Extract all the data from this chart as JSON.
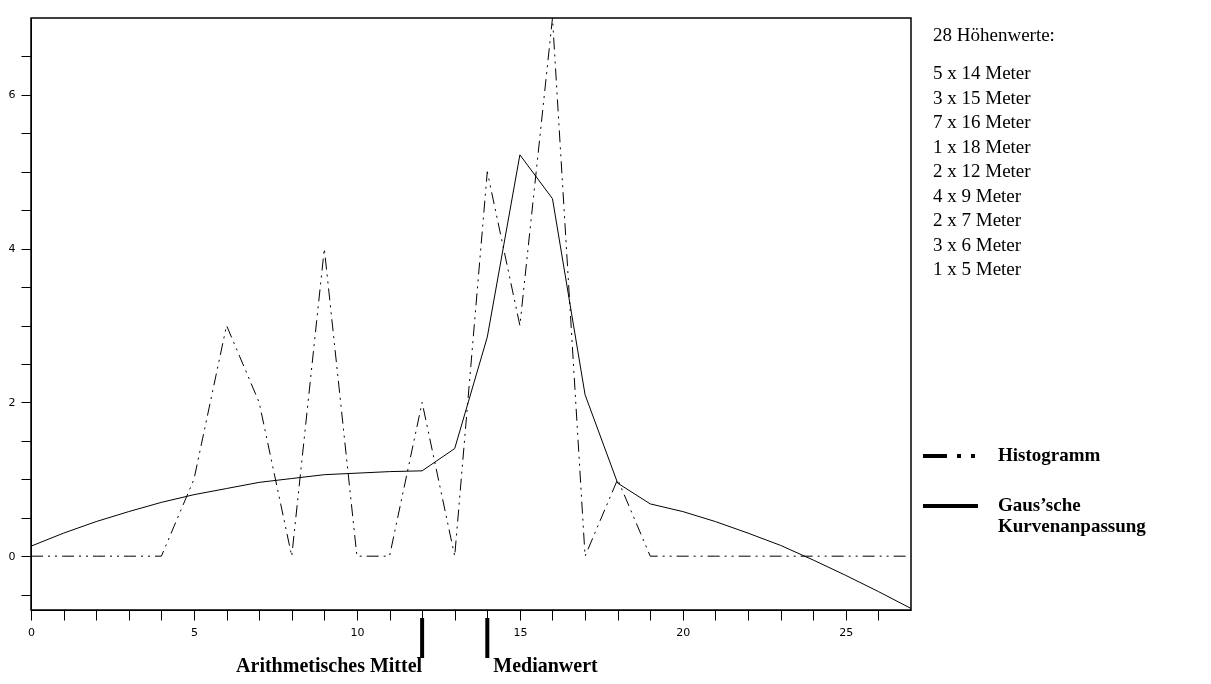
{
  "chart_data": {
    "type": "line",
    "x": [
      0,
      1,
      2,
      3,
      4,
      5,
      6,
      7,
      8,
      9,
      10,
      11,
      12,
      13,
      14,
      15,
      16,
      17,
      18,
      19,
      20,
      21,
      22,
      23,
      24,
      25,
      26,
      27
    ],
    "series": [
      {
        "name": "Histogramm",
        "color": "#000000",
        "line_style": "dashed",
        "values": [
          0,
          0,
          0,
          0,
          0,
          1,
          3,
          2,
          0,
          4,
          0,
          0,
          2,
          0,
          5,
          3,
          7,
          0,
          1,
          0,
          0,
          0,
          0,
          0,
          0,
          0,
          0,
          0
        ]
      },
      {
        "name": "Gaus’sche Kurvenanpassung",
        "color": "#000000",
        "line_style": "solid",
        "values": [
          0.13,
          0.3,
          0.45,
          0.58,
          0.7,
          0.8,
          0.88,
          0.96,
          1.01,
          1.06,
          1.08,
          1.1,
          1.11,
          1.4,
          2.85,
          5.22,
          4.65,
          2.1,
          0.95,
          0.68,
          0.58,
          0.45,
          0.3,
          0.14,
          -0.05,
          -0.25,
          -0.46,
          -0.68
        ]
      }
    ],
    "xlim": [
      0,
      27
    ],
    "ylim": [
      -0.7,
      7
    ],
    "xticks": [
      0,
      {
        "value": 1,
        "label": null
      },
      {
        "value": 2,
        "label": null
      },
      {
        "value": 3,
        "label": null
      },
      {
        "value": 4,
        "label": null
      },
      5,
      {
        "value": 6,
        "label": null
      },
      {
        "value": 7,
        "label": null
      },
      {
        "value": 8,
        "label": null
      },
      {
        "value": 9,
        "label": null
      },
      10,
      {
        "value": 11,
        "label": null
      },
      {
        "value": 12,
        "label": null
      },
      {
        "value": 13,
        "label": null
      },
      {
        "value": 14,
        "label": null
      },
      15,
      {
        "value": 16,
        "label": null
      },
      {
        "value": 17,
        "label": null
      },
      {
        "value": 18,
        "label": null
      },
      {
        "value": 19,
        "label": null
      },
      20,
      {
        "value": 21,
        "label": null
      },
      {
        "value": 22,
        "label": null
      },
      {
        "value": 23,
        "label": null
      },
      {
        "value": 24,
        "label": null
      },
      25,
      {
        "value": 26,
        "label": null
      }
    ],
    "yticks": [
      {
        "value": -0.5,
        "label": null
      },
      0,
      {
        "value": 0.5,
        "label": null
      },
      {
        "value": 1,
        "label": null
      },
      {
        "value": 1.5,
        "label": null
      },
      2,
      {
        "value": 2.5,
        "label": null
      },
      {
        "value": 3,
        "label": null
      },
      {
        "value": 3.5,
        "label": null
      },
      4,
      {
        "value": 4.5,
        "label": null
      },
      {
        "value": 5,
        "label": null
      },
      {
        "value": 5.5,
        "label": null
      },
      6,
      {
        "value": 6.5,
        "label": null
      }
    ],
    "ref_lines": [
      {
        "axis": "x",
        "value": 12,
        "label": "Arithmetisches Mittel"
      },
      {
        "axis": "x",
        "value": 14,
        "label": "Medianwert"
      }
    ],
    "annotations": [
      "28 Höhenwerte:",
      "5 x 14 Meter",
      "3 x 15 Meter",
      "7 x 16 Meter",
      "1 x 18 Meter",
      "2 x 12 Meter",
      "4 x 9 Meter",
      "2 x 7 Meter",
      "3 x 6 Meter",
      "1 x 5 Meter"
    ],
    "legend": "right",
    "marker": "none",
    "grid": false
  }
}
